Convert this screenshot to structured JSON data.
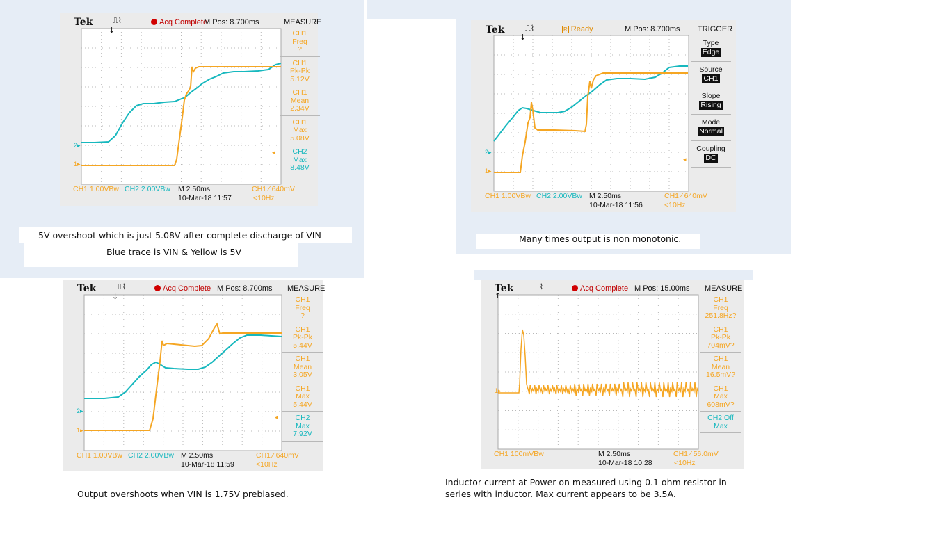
{
  "colors": {
    "ch1": "#f5a623",
    "ch2": "#17b8be",
    "status_red": "#c00000",
    "ready_orange": "#e08a00"
  },
  "scopes": [
    {
      "id": "s1",
      "brand": "Tek",
      "trigger_icon": "trigger-step-icon",
      "status": "Acq Complete",
      "status_kind": "complete",
      "mpos": "M Pos: 8.700ms",
      "menu_title": "MEASURE",
      "menu_items": [
        {
          "ch": "ch1",
          "lines": [
            "CH1",
            "Freq",
            "?"
          ]
        },
        {
          "ch": "ch1",
          "lines": [
            "CH1",
            "Pk-Pk",
            "5.12V"
          ]
        },
        {
          "ch": "ch1",
          "lines": [
            "CH1",
            "Mean",
            "2.34V"
          ]
        },
        {
          "ch": "ch1",
          "lines": [
            "CH1",
            "Max",
            "5.08V"
          ]
        },
        {
          "ch": "ch2",
          "lines": [
            "CH2",
            "Max",
            "8.48V"
          ]
        }
      ],
      "bottom": {
        "ch1_scale": "CH1  1.00VBw",
        "ch2_scale": "CH2  2.00VBw",
        "timebase": "M 2.50ms",
        "date": "10-Mar-18 11:57",
        "trig": "CH1 ⁄ 640mV",
        "freq": "<10Hz"
      }
    },
    {
      "id": "s2",
      "brand": "Tek",
      "trigger_icon": "trigger-step-icon",
      "status": "Ready",
      "status_kind": "ready",
      "mpos": "M Pos: 8.700ms",
      "menu_title": "TRIGGER",
      "menu_items": [
        {
          "ch": "trg",
          "lines": [
            "Type",
            "Edge"
          ]
        },
        {
          "ch": "trg",
          "lines": [
            "Source",
            "CH1"
          ]
        },
        {
          "ch": "trg",
          "lines": [
            "Slope",
            "Rising"
          ]
        },
        {
          "ch": "trg",
          "lines": [
            "Mode",
            "Normal"
          ]
        },
        {
          "ch": "trg",
          "lines": [
            "Coupling",
            "DC"
          ]
        }
      ],
      "bottom": {
        "ch1_scale": "CH1  1.00VBw",
        "ch2_scale": "CH2  2.00VBw",
        "timebase": "M 2.50ms",
        "date": "10-Mar-18 11:56",
        "trig": "CH1 ⁄ 640mV",
        "freq": "<10Hz"
      }
    },
    {
      "id": "s3",
      "brand": "Tek",
      "trigger_icon": "trigger-step-icon",
      "status": "Acq Complete",
      "status_kind": "complete",
      "mpos": "M Pos: 8.700ms",
      "menu_title": "MEASURE",
      "menu_items": [
        {
          "ch": "ch1",
          "lines": [
            "CH1",
            "Freq",
            "?"
          ]
        },
        {
          "ch": "ch1",
          "lines": [
            "CH1",
            "Pk-Pk",
            "5.44V"
          ]
        },
        {
          "ch": "ch1",
          "lines": [
            "CH1",
            "Mean",
            "3.05V"
          ]
        },
        {
          "ch": "ch1",
          "lines": [
            "CH1",
            "Max",
            "5.44V"
          ]
        },
        {
          "ch": "ch2",
          "lines": [
            "CH2",
            "Max",
            "7.92V"
          ]
        }
      ],
      "bottom": {
        "ch1_scale": "CH1  1.00VBw",
        "ch2_scale": "CH2  2.00VBw",
        "timebase": "M 2.50ms",
        "date": "10-Mar-18 11:59",
        "trig": "CH1 ⁄ 640mV",
        "freq": "<10Hz"
      }
    },
    {
      "id": "s4",
      "brand": "Tek",
      "trigger_icon": "trigger-step-icon",
      "status": "Acq Complete",
      "status_kind": "complete",
      "mpos": "M Pos: 15.00ms",
      "menu_title": "MEASURE",
      "menu_items": [
        {
          "ch": "ch1",
          "lines": [
            "CH1",
            "Freq",
            "251.8Hz?"
          ]
        },
        {
          "ch": "ch1",
          "lines": [
            "CH1",
            "Pk-Pk",
            "704mV?"
          ]
        },
        {
          "ch": "ch1",
          "lines": [
            "CH1",
            "Mean",
            "16.5mV?"
          ]
        },
        {
          "ch": "ch1",
          "lines": [
            "CH1",
            "Max",
            "608mV?"
          ]
        },
        {
          "ch": "ch2",
          "lines": [
            "CH2 Off",
            "Max"
          ]
        }
      ],
      "bottom": {
        "ch1_scale": "CH1  100mVBw",
        "ch2_scale": "",
        "timebase": "M 2.50ms",
        "date": "10-Mar-18 10:28",
        "trig": "CH1 ⁄ 56.0mV",
        "freq": "<10Hz"
      }
    }
  ],
  "captions": {
    "c1a": "5V overshoot which is just 5.08V after complete discharge of VIN",
    "c1b": "Blue trace is VIN & Yellow is 5V",
    "c2": "Many times output is non monotonic.",
    "c3": "Output overshoots when VIN is 1.75V prebiased.",
    "c4a": "Inductor current at Power on measured using 0.1 ohm resistor in",
    "c4b": "series with inductor. Max current appears to be 3.5A."
  }
}
